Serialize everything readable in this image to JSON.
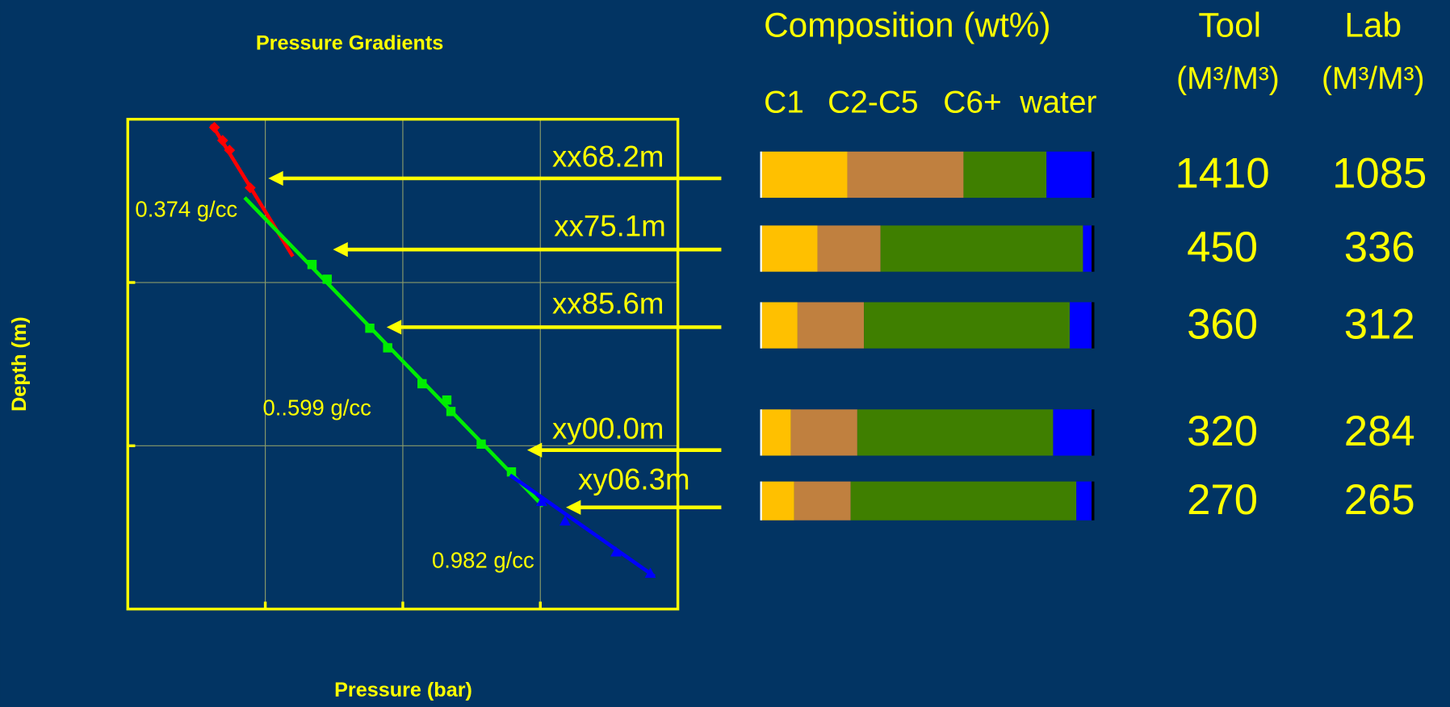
{
  "chart_data": {
    "type": "line",
    "title": "Pressure Gradients",
    "x_label": "Pressure (bar)",
    "y_label": "Depth (m)",
    "xlim": [
      0,
      4
    ],
    "ylim": [
      0,
      3
    ],
    "invert_y": true,
    "xticks": [
      1,
      2,
      3
    ],
    "yticks": [
      1,
      2
    ],
    "grid": true,
    "axis_color": "#ffff00",
    "grid_color": "#8a9a6a",
    "series": [
      {
        "label": "0.374 g/cc",
        "color": "#ff0000",
        "marker": "diamond",
        "x": [
          0.63,
          0.69,
          0.74,
          0.89
        ],
        "y": [
          0.05,
          0.13,
          0.19,
          0.42
        ],
        "fit_x": [
          0.61,
          1.2
        ],
        "fit_y": [
          0.03,
          0.84
        ]
      },
      {
        "label": "0..599 g/cc",
        "color": "#00ee00",
        "marker": "square",
        "x": [
          1.34,
          1.45,
          1.76,
          1.89,
          2.14,
          2.32,
          2.35,
          2.57,
          2.79
        ],
        "y": [
          0.89,
          0.98,
          1.28,
          1.4,
          1.62,
          1.72,
          1.79,
          1.99,
          2.16
        ],
        "fit_x": [
          0.85,
          3.02
        ],
        "fit_y": [
          0.48,
          2.37
        ]
      },
      {
        "label": "0.982 g/cc",
        "color": "#0000ff",
        "marker": "triangle",
        "x": [
          3.01,
          3.18,
          3.55,
          3.8
        ],
        "y": [
          2.34,
          2.46,
          2.65,
          2.78
        ],
        "fit_x": [
          2.78,
          3.83
        ],
        "fit_y": [
          2.18,
          2.8
        ]
      }
    ],
    "depth_labels": [
      "xx68.2m",
      "xx75.1m",
      "xx85.6m",
      "xy00.0m",
      "xy06.3m"
    ]
  },
  "table": {
    "composition_title": "Composition (wt%)",
    "tool_title": "Tool",
    "lab_title": "Lab",
    "tool_unit": "(M³/M³)",
    "lab_unit": "(M³/M³)",
    "components": [
      "C1",
      "C2-C5",
      "C6+",
      "water"
    ],
    "component_colors": [
      "#ffc000",
      "#c0803f",
      "#3f7f00",
      "#0000ff"
    ],
    "rows": [
      {
        "composition": [
          26,
          35,
          25,
          14
        ],
        "tool": 1410,
        "lab": 1085
      },
      {
        "composition": [
          17,
          19,
          61,
          3
        ],
        "tool": 450,
        "lab": 336
      },
      {
        "composition": [
          11,
          20,
          62,
          7
        ],
        "tool": 360,
        "lab": 312
      },
      {
        "composition": [
          9,
          20,
          59,
          12
        ],
        "tool": 320,
        "lab": 284
      },
      {
        "composition": [
          10,
          17,
          68,
          5
        ],
        "tool": 270,
        "lab": 265
      }
    ]
  }
}
